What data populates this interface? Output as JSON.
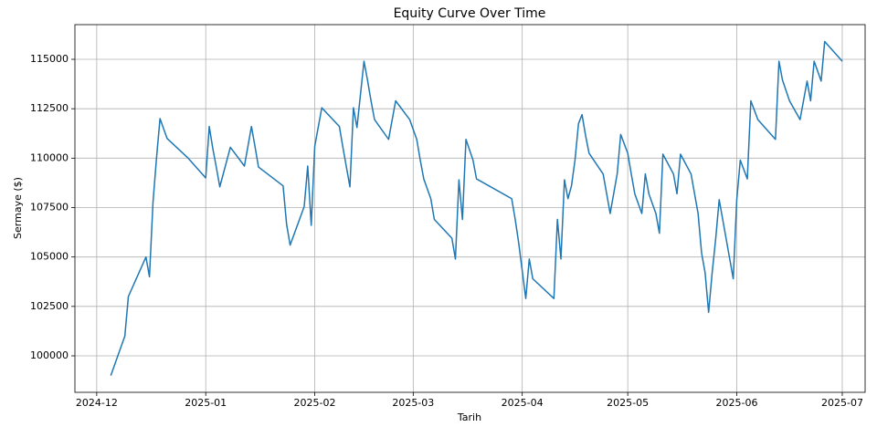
{
  "chart_data": {
    "type": "line",
    "title": "Equity Curve Over Time",
    "x_label": "Tarih",
    "y_label": "Sermaye ($)",
    "color": "#1f77b4",
    "grid": true,
    "x": [
      20062,
      20066,
      20067,
      20072,
      20073,
      20074,
      20075,
      20076,
      20078,
      20084,
      20089,
      20090,
      20091,
      20092,
      20093,
      20096,
      20100,
      20102,
      20103,
      20104,
      20111,
      20112,
      20113,
      20117,
      20118,
      20119,
      20120,
      20122,
      20127,
      20128,
      20129,
      20130,
      20131,
      20132,
      20134,
      20135,
      20136,
      20137,
      20141,
      20143,
      20147,
      20149,
      20150,
      20151,
      20153,
      20154,
      20159,
      20160,
      20161,
      20162,
      20163,
      20165,
      20166,
      20176,
      20177,
      20178,
      20180,
      20181,
      20182,
      20188,
      20189,
      20190,
      20191,
      20192,
      20193,
      20194,
      20195,
      20196,
      20197,
      20198,
      20202,
      20204,
      20206,
      20207,
      20209,
      20210,
      20211,
      20213,
      20214,
      20215,
      20217,
      20218,
      20219,
      20222,
      20223,
      20224,
      20227,
      20228,
      20229,
      20230,
      20231,
      20232,
      20233,
      20234,
      20235,
      20236,
      20237,
      20238,
      20239,
      20240,
      20241,
      20243,
      20244,
      20246,
      20251,
      20252,
      20253,
      20255,
      20258,
      20260,
      20261,
      20262,
      20264,
      20265,
      20270
    ],
    "values": [
      99000,
      101000,
      103000,
      105000,
      104000,
      107750,
      110000,
      112000,
      111000,
      110000,
      109000,
      111600,
      110500,
      109550,
      108550,
      110550,
      109600,
      111600,
      110600,
      109550,
      108600,
      106650,
      105600,
      107550,
      109600,
      106600,
      110600,
      112550,
      111600,
      110550,
      109550,
      108550,
      112550,
      111550,
      114900,
      113950,
      112900,
      111950,
      110950,
      112900,
      111950,
      110950,
      109900,
      108950,
      107950,
      106900,
      105950,
      104900,
      108900,
      106900,
      110950,
      109900,
      108950,
      107950,
      106900,
      105700,
      102900,
      104900,
      103900,
      102900,
      106900,
      104900,
      108900,
      107950,
      108600,
      109900,
      111750,
      112200,
      111150,
      110250,
      109200,
      107200,
      109200,
      111200,
      110250,
      109200,
      108200,
      107200,
      109200,
      108200,
      107200,
      106200,
      110200,
      109200,
      108200,
      110200,
      109200,
      108200,
      107200,
      105200,
      104200,
      102200,
      104200,
      105900,
      107900,
      106900,
      105900,
      104900,
      103900,
      107900,
      109900,
      108950,
      112900,
      111950,
      110950,
      114900,
      113950,
      112900,
      111950,
      113900,
      112900,
      114900,
      113900,
      115900,
      114900
    ],
    "xlim": [
      20051.8,
      20276.5
    ],
    "xticks": [
      {
        "value": 20058,
        "label": "2024-12"
      },
      {
        "value": 20089,
        "label": "2025-01"
      },
      {
        "value": 20120,
        "label": "2025-02"
      },
      {
        "value": 20148,
        "label": "2025-03"
      },
      {
        "value": 20179,
        "label": "2025-04"
      },
      {
        "value": 20209,
        "label": "2025-05"
      },
      {
        "value": 20240,
        "label": "2025-06"
      },
      {
        "value": 20270,
        "label": "2025-07"
      }
    ],
    "ylim": [
      98154,
      116754
    ],
    "yticks": [
      100000,
      102500,
      105000,
      107500,
      110000,
      112500,
      115000
    ]
  }
}
